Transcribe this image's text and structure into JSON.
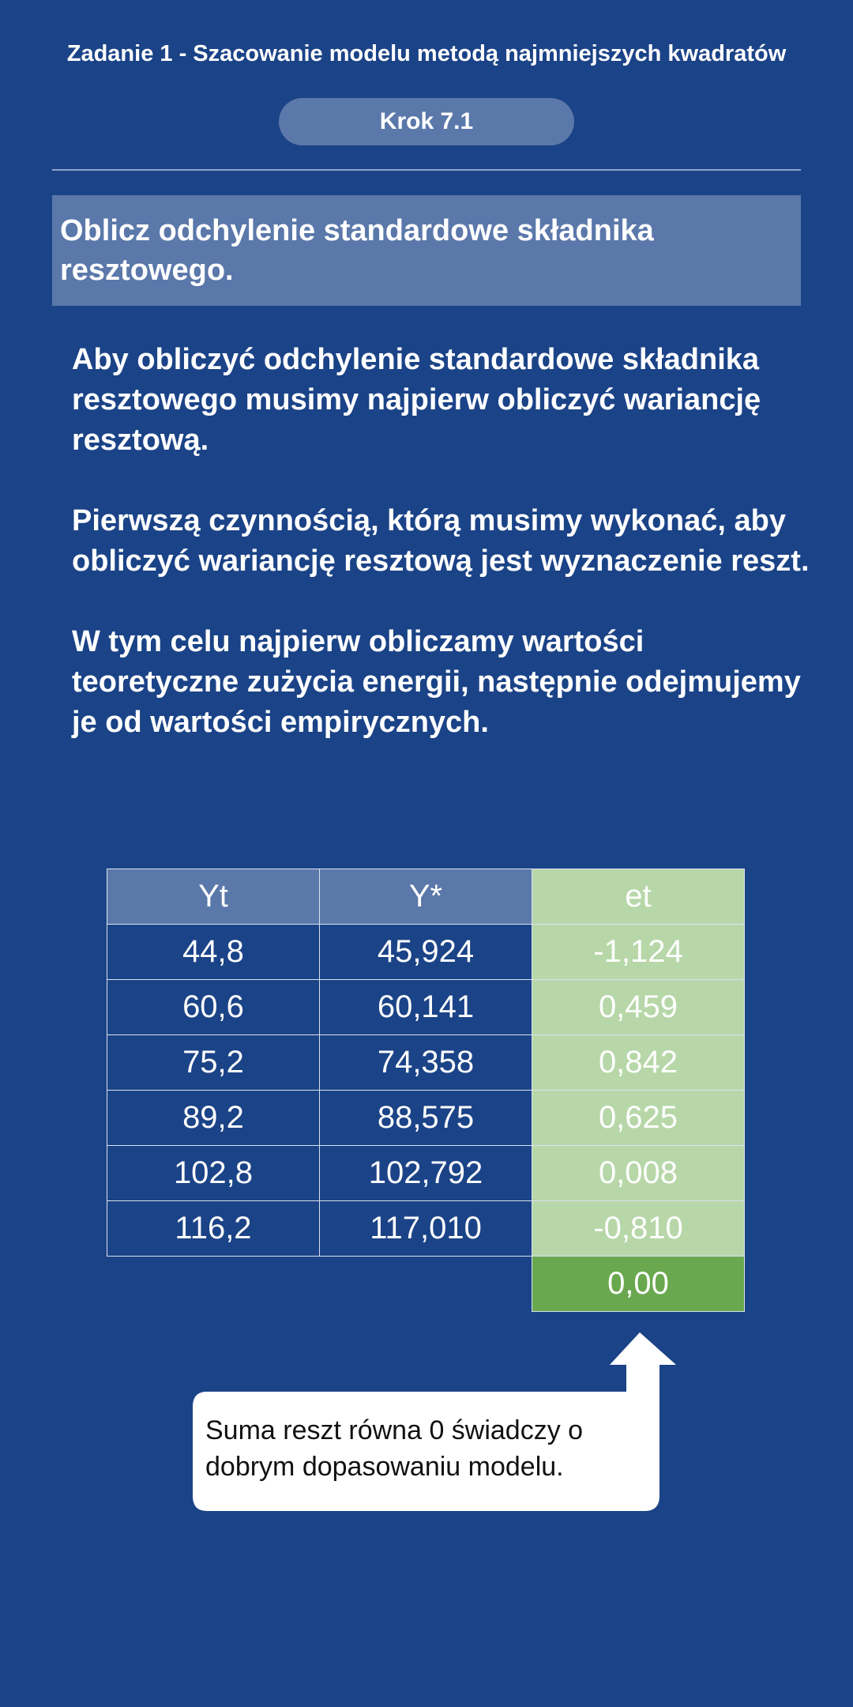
{
  "header": {
    "title": "Zadanie 1 - Szacowanie modelu metodą najmniejszych kwadratów",
    "step_label": "Krok 7.1"
  },
  "task": {
    "instruction": "Oblicz odchylenie standardowe składnika resztowego."
  },
  "explanation": {
    "paragraphs": [
      "Aby obliczyć odchylenie standardowe składnika resztowego musimy najpierw obliczyć wariancję resztową.",
      "Pierwszą czynnością, którą musimy wykonać, aby obliczyć wariancję resztową jest wyznaczenie reszt.",
      "W tym celu najpierw obliczamy wartości teoretyczne zużycia energii, następnie odejmujemy je od wartości empirycznych."
    ]
  },
  "table": {
    "headers": [
      "Yt",
      "Y*",
      "et"
    ],
    "rows": [
      [
        "44,8",
        "45,924",
        "-1,124"
      ],
      [
        "60,6",
        "60,141",
        "0,459"
      ],
      [
        "75,2",
        "74,358",
        "0,842"
      ],
      [
        "89,2",
        "88,575",
        "0,625"
      ],
      [
        "102,8",
        "102,792",
        "0,008"
      ],
      [
        "116,2",
        "117,010",
        "-0,810"
      ]
    ],
    "sum": "0,00"
  },
  "callout": {
    "text": "Suma reszt równa 0 świadczy o dobrym dopasowaniu modelu."
  },
  "colors": {
    "background": "#1b4387",
    "accent_blue": "#5b78aa",
    "light_green": "#b7d7a8",
    "dark_green": "#6aa84f",
    "callout_bg": "#ffffff"
  }
}
